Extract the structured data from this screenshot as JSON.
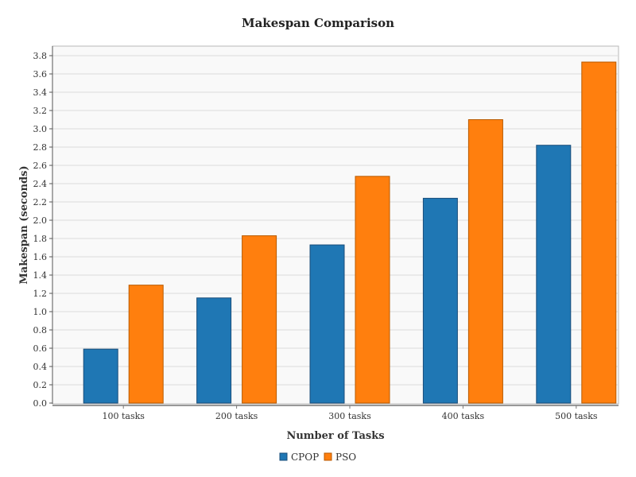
{
  "chart_data": {
    "type": "bar",
    "title": "Makespan Comparison",
    "xlabel": "Number of Tasks",
    "ylabel": "Makespan (seconds)",
    "categories": [
      "100 tasks",
      "200 tasks",
      "300 tasks",
      "400 tasks",
      "500 tasks"
    ],
    "series": [
      {
        "name": "CPOP",
        "color": "#1f77b4",
        "values": [
          0.59,
          1.15,
          1.73,
          2.24,
          2.82
        ]
      },
      {
        "name": "PSO",
        "color": "#ff7f0e",
        "values": [
          1.29,
          1.83,
          2.48,
          3.1,
          3.73
        ]
      }
    ],
    "ylim": [
      0,
      3.9
    ],
    "yticks": [
      "0.0",
      "0.2",
      "0.4",
      "0.6",
      "0.8",
      "1.0",
      "1.2",
      "1.4",
      "1.6",
      "1.8",
      "2.0",
      "2.2",
      "2.4",
      "2.6",
      "2.8",
      "3.0",
      "3.2",
      "3.4",
      "3.6",
      "3.8"
    ],
    "grid": true,
    "legend": "bottom"
  }
}
